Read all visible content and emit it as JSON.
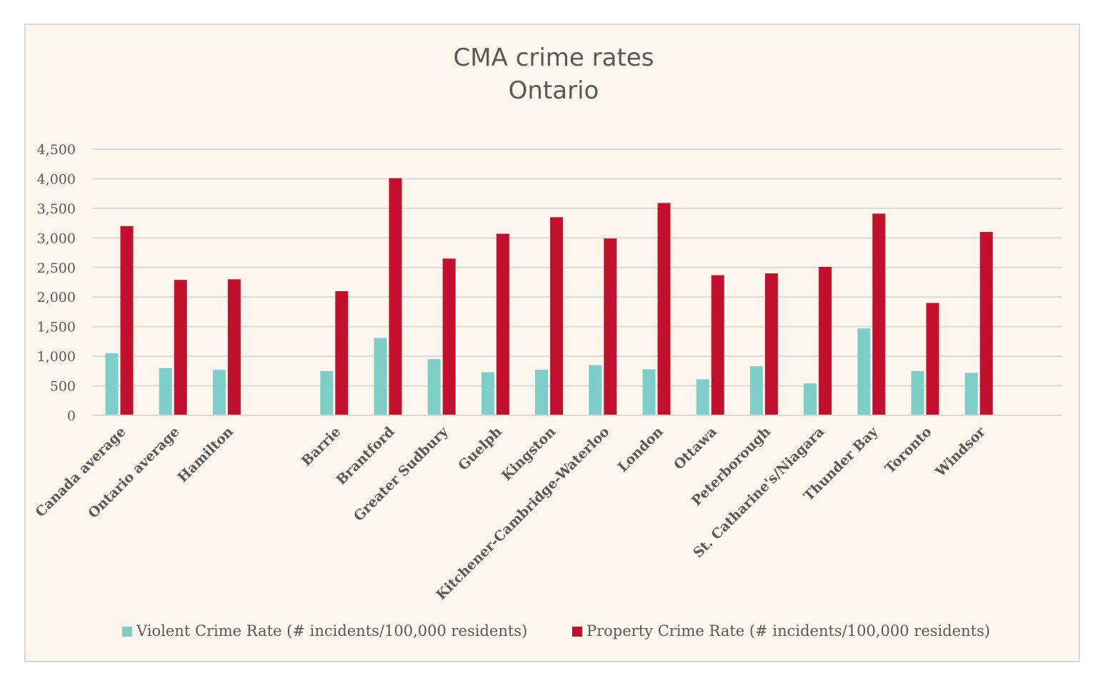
{
  "chart_data": {
    "type": "bar",
    "title": "CMA crime rates",
    "subtitle": "Ontario",
    "xlabel": "",
    "ylabel": "",
    "ylim": [
      0,
      4500
    ],
    "ytick_step": 500,
    "grid": true,
    "legend_position": "bottom",
    "categories": [
      "Canada average",
      "Ontario average",
      "Hamilton",
      "",
      "Barrie",
      "Brantford",
      "Greater Sudbury",
      "Guelph",
      "Kingston",
      "Kitchener-Cambridge-Waterloo",
      "London",
      "Ottawa",
      "Peterborough",
      "St. Catharine's/Niagara",
      "Thunder Bay",
      "Toronto",
      "Windsor"
    ],
    "series": [
      {
        "name": "Violent Crime Rate (# incidents/100,000 residents)",
        "color": "#7dcdc9",
        "values": [
          1050,
          800,
          770,
          null,
          750,
          1310,
          950,
          730,
          770,
          850,
          780,
          610,
          830,
          540,
          1470,
          750,
          720
        ]
      },
      {
        "name": "Property Crime Rate (# incidents/100,000 residents)",
        "color": "#c3102e",
        "values": [
          3200,
          2290,
          2300,
          null,
          2100,
          4010,
          2650,
          3070,
          3350,
          2990,
          3590,
          2370,
          2400,
          2510,
          3410,
          1900,
          3100
        ]
      }
    ]
  }
}
